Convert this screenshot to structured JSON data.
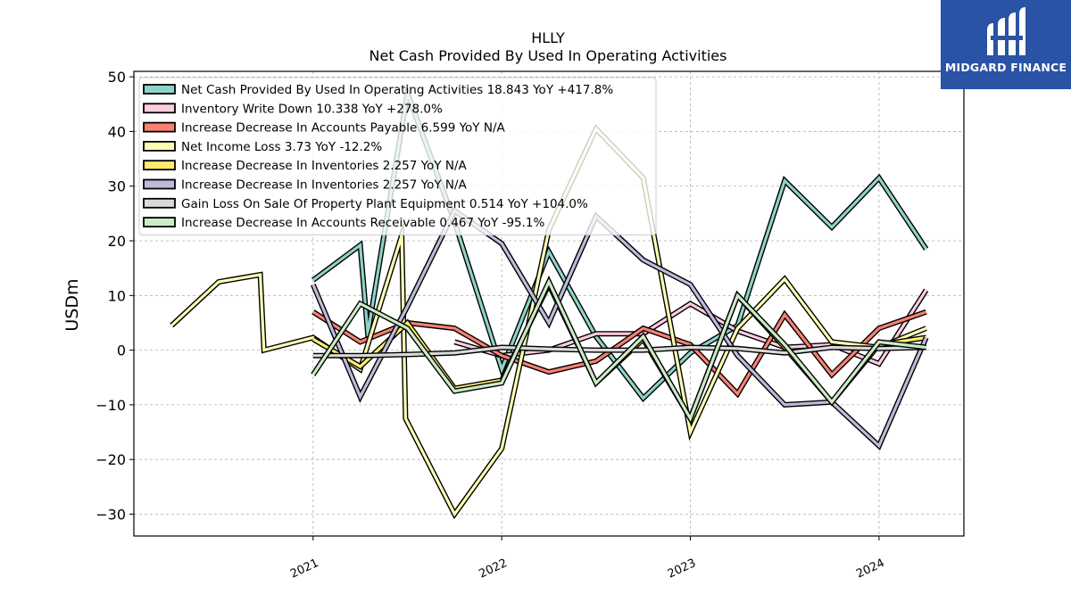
{
  "chart_data": {
    "type": "line",
    "title": "HLLY",
    "subtitle": "Net Cash Provided By Used In Operating Activities",
    "ylabel": "USDm",
    "xlabel": "",
    "ylim": [
      -34,
      51
    ],
    "xlim": [
      2020.05,
      2024.45
    ],
    "yticks": [
      50,
      40,
      30,
      20,
      10,
      0,
      -10,
      -20,
      -30
    ],
    "ytick_labels": [
      "50",
      "40",
      "30",
      "20",
      "10",
      "0",
      "−10",
      "−20",
      "−30"
    ],
    "xticks": [
      2021,
      2022,
      2023,
      2024
    ],
    "xtick_labels": [
      "2021",
      "2022",
      "2023",
      "2024"
    ],
    "grid": true,
    "legend_position": "top-left",
    "series": [
      {
        "name": "Net Cash Provided By Used In Operating Activities",
        "legend": "Net Cash Provided By Used In Operating Activities  18.843 YoY +417.8%",
        "color": "#8dd3c7",
        "points": [
          [
            2021.0,
            12.8
          ],
          [
            2021.25,
            19.2
          ],
          [
            2021.29,
            3.0
          ],
          [
            2021.5,
            47.0
          ],
          [
            2021.75,
            23.5
          ],
          [
            2022.0,
            -3.5
          ],
          [
            2022.25,
            18.0
          ],
          [
            2022.5,
            2.5
          ],
          [
            2022.75,
            -8.8
          ],
          [
            2023.0,
            -0.5
          ],
          [
            2023.25,
            4.5
          ],
          [
            2023.5,
            31.0
          ],
          [
            2023.75,
            22.5
          ],
          [
            2024.0,
            31.5
          ],
          [
            2024.25,
            18.5
          ]
        ]
      },
      {
        "name": "Inventory Write Down",
        "legend": "Inventory Write Down  10.338 YoY +278.0%",
        "color": "#ffcce0",
        "points": [
          [
            2021.75,
            1.5
          ],
          [
            2022.0,
            -1.0
          ],
          [
            2022.25,
            0.0
          ],
          [
            2022.5,
            3.0
          ],
          [
            2022.75,
            3.0
          ],
          [
            2023.0,
            8.5
          ],
          [
            2023.25,
            3.5
          ],
          [
            2023.5,
            0.5
          ],
          [
            2023.75,
            1.0
          ],
          [
            2024.0,
            -2.5
          ],
          [
            2024.25,
            11.0
          ]
        ]
      },
      {
        "name": "Increase Decrease In Accounts Payable",
        "legend": "Increase Decrease In Accounts Payable  6.599 YoY N/A",
        "color": "#fb8072",
        "points": [
          [
            2021.0,
            7.0
          ],
          [
            2021.25,
            1.5
          ],
          [
            2021.5,
            5.0
          ],
          [
            2021.75,
            4.0
          ],
          [
            2022.0,
            -1.0
          ],
          [
            2022.25,
            -4.0
          ],
          [
            2022.5,
            -2.0
          ],
          [
            2022.75,
            4.0
          ],
          [
            2023.0,
            1.0
          ],
          [
            2023.25,
            -8.0
          ],
          [
            2023.5,
            6.5
          ],
          [
            2023.75,
            -4.5
          ],
          [
            2024.0,
            4.0
          ],
          [
            2024.25,
            7.0
          ]
        ]
      },
      {
        "name": "Net Income Loss",
        "legend": "Net Income Loss  3.73 YoY -12.2%",
        "color": "#ffffb3",
        "points": [
          [
            2020.25,
            4.5
          ],
          [
            2020.5,
            12.5
          ],
          [
            2020.72,
            13.8
          ],
          [
            2020.74,
            0.0
          ],
          [
            2021.0,
            2.3
          ],
          [
            2021.25,
            -3.5
          ],
          [
            2021.47,
            21.0
          ],
          [
            2021.49,
            -12.5
          ],
          [
            2021.75,
            -30.0
          ],
          [
            2022.0,
            -18.0
          ],
          [
            2022.25,
            22.0
          ],
          [
            2022.5,
            40.5
          ],
          [
            2022.75,
            31.5
          ],
          [
            2023.0,
            -15.0
          ],
          [
            2023.25,
            4.0
          ],
          [
            2023.5,
            13.0
          ],
          [
            2023.75,
            1.5
          ],
          [
            2024.0,
            0.5
          ],
          [
            2024.25,
            4.0
          ]
        ]
      },
      {
        "name": "Increase Decrease In Inventories",
        "legend": "Increase Decrease In Inventories  2.257 YoY N/A",
        "color": "#ffed6f",
        "points": [
          [
            2021.0,
            2.0
          ],
          [
            2021.25,
            -3.0
          ],
          [
            2021.5,
            5.0
          ],
          [
            2021.75,
            -7.0
          ],
          [
            2022.0,
            -5.5
          ],
          [
            2022.25,
            12.0
          ],
          [
            2022.5,
            -6.0
          ],
          [
            2022.75,
            2.0
          ],
          [
            2023.0,
            -12.5
          ],
          [
            2023.25,
            10.0
          ],
          [
            2023.5,
            0.5
          ],
          [
            2023.75,
            -9.5
          ],
          [
            2024.0,
            1.0
          ],
          [
            2024.25,
            2.3
          ]
        ]
      },
      {
        "name": "Increase Decrease In Inventories",
        "legend": "Increase Decrease In Inventories  2.257 YoY N/A",
        "color": "#bebada",
        "points": [
          [
            2021.0,
            12.0
          ],
          [
            2021.25,
            -8.5
          ],
          [
            2021.5,
            8.0
          ],
          [
            2021.75,
            25.5
          ],
          [
            2022.0,
            19.5
          ],
          [
            2022.25,
            5.0
          ],
          [
            2022.5,
            24.5
          ],
          [
            2022.75,
            16.5
          ],
          [
            2023.0,
            12.0
          ],
          [
            2023.25,
            -1.0
          ],
          [
            2023.5,
            -10.0
          ],
          [
            2023.75,
            -9.5
          ],
          [
            2024.0,
            -17.5
          ],
          [
            2024.25,
            2.3
          ]
        ]
      },
      {
        "name": "Gain Loss On Sale Of Property Plant Equipment",
        "legend": "Gain Loss On Sale Of Property Plant Equipment  0.514 YoY +104.0%",
        "color": "#d9d9d9",
        "points": [
          [
            2021.0,
            -1.0
          ],
          [
            2021.25,
            -1.0
          ],
          [
            2021.5,
            -0.8
          ],
          [
            2021.75,
            -0.5
          ],
          [
            2022.0,
            0.5
          ],
          [
            2022.25,
            0.2
          ],
          [
            2022.5,
            0.0
          ],
          [
            2022.75,
            0.0
          ],
          [
            2023.0,
            0.5
          ],
          [
            2023.25,
            0.3
          ],
          [
            2023.5,
            -0.5
          ],
          [
            2023.75,
            0.5
          ],
          [
            2024.0,
            0.3
          ],
          [
            2024.25,
            0.5
          ]
        ]
      },
      {
        "name": "Increase Decrease In Accounts Receivable",
        "legend": "Increase Decrease In Accounts Receivable  0.467 YoY -95.1%",
        "color": "#ccebc5",
        "points": [
          [
            2021.0,
            -4.5
          ],
          [
            2021.25,
            8.5
          ],
          [
            2021.5,
            4.0
          ],
          [
            2021.75,
            -7.5
          ],
          [
            2022.0,
            -6.0
          ],
          [
            2022.25,
            12.5
          ],
          [
            2022.5,
            -6.0
          ],
          [
            2022.75,
            2.5
          ],
          [
            2023.0,
            -12.5
          ],
          [
            2023.25,
            10.0
          ],
          [
            2023.5,
            1.0
          ],
          [
            2023.75,
            -9.5
          ],
          [
            2024.0,
            1.5
          ],
          [
            2024.25,
            0.5
          ]
        ]
      }
    ]
  },
  "logo": {
    "text": "MIDGARD FINANCE",
    "color": "#2a52a5"
  }
}
